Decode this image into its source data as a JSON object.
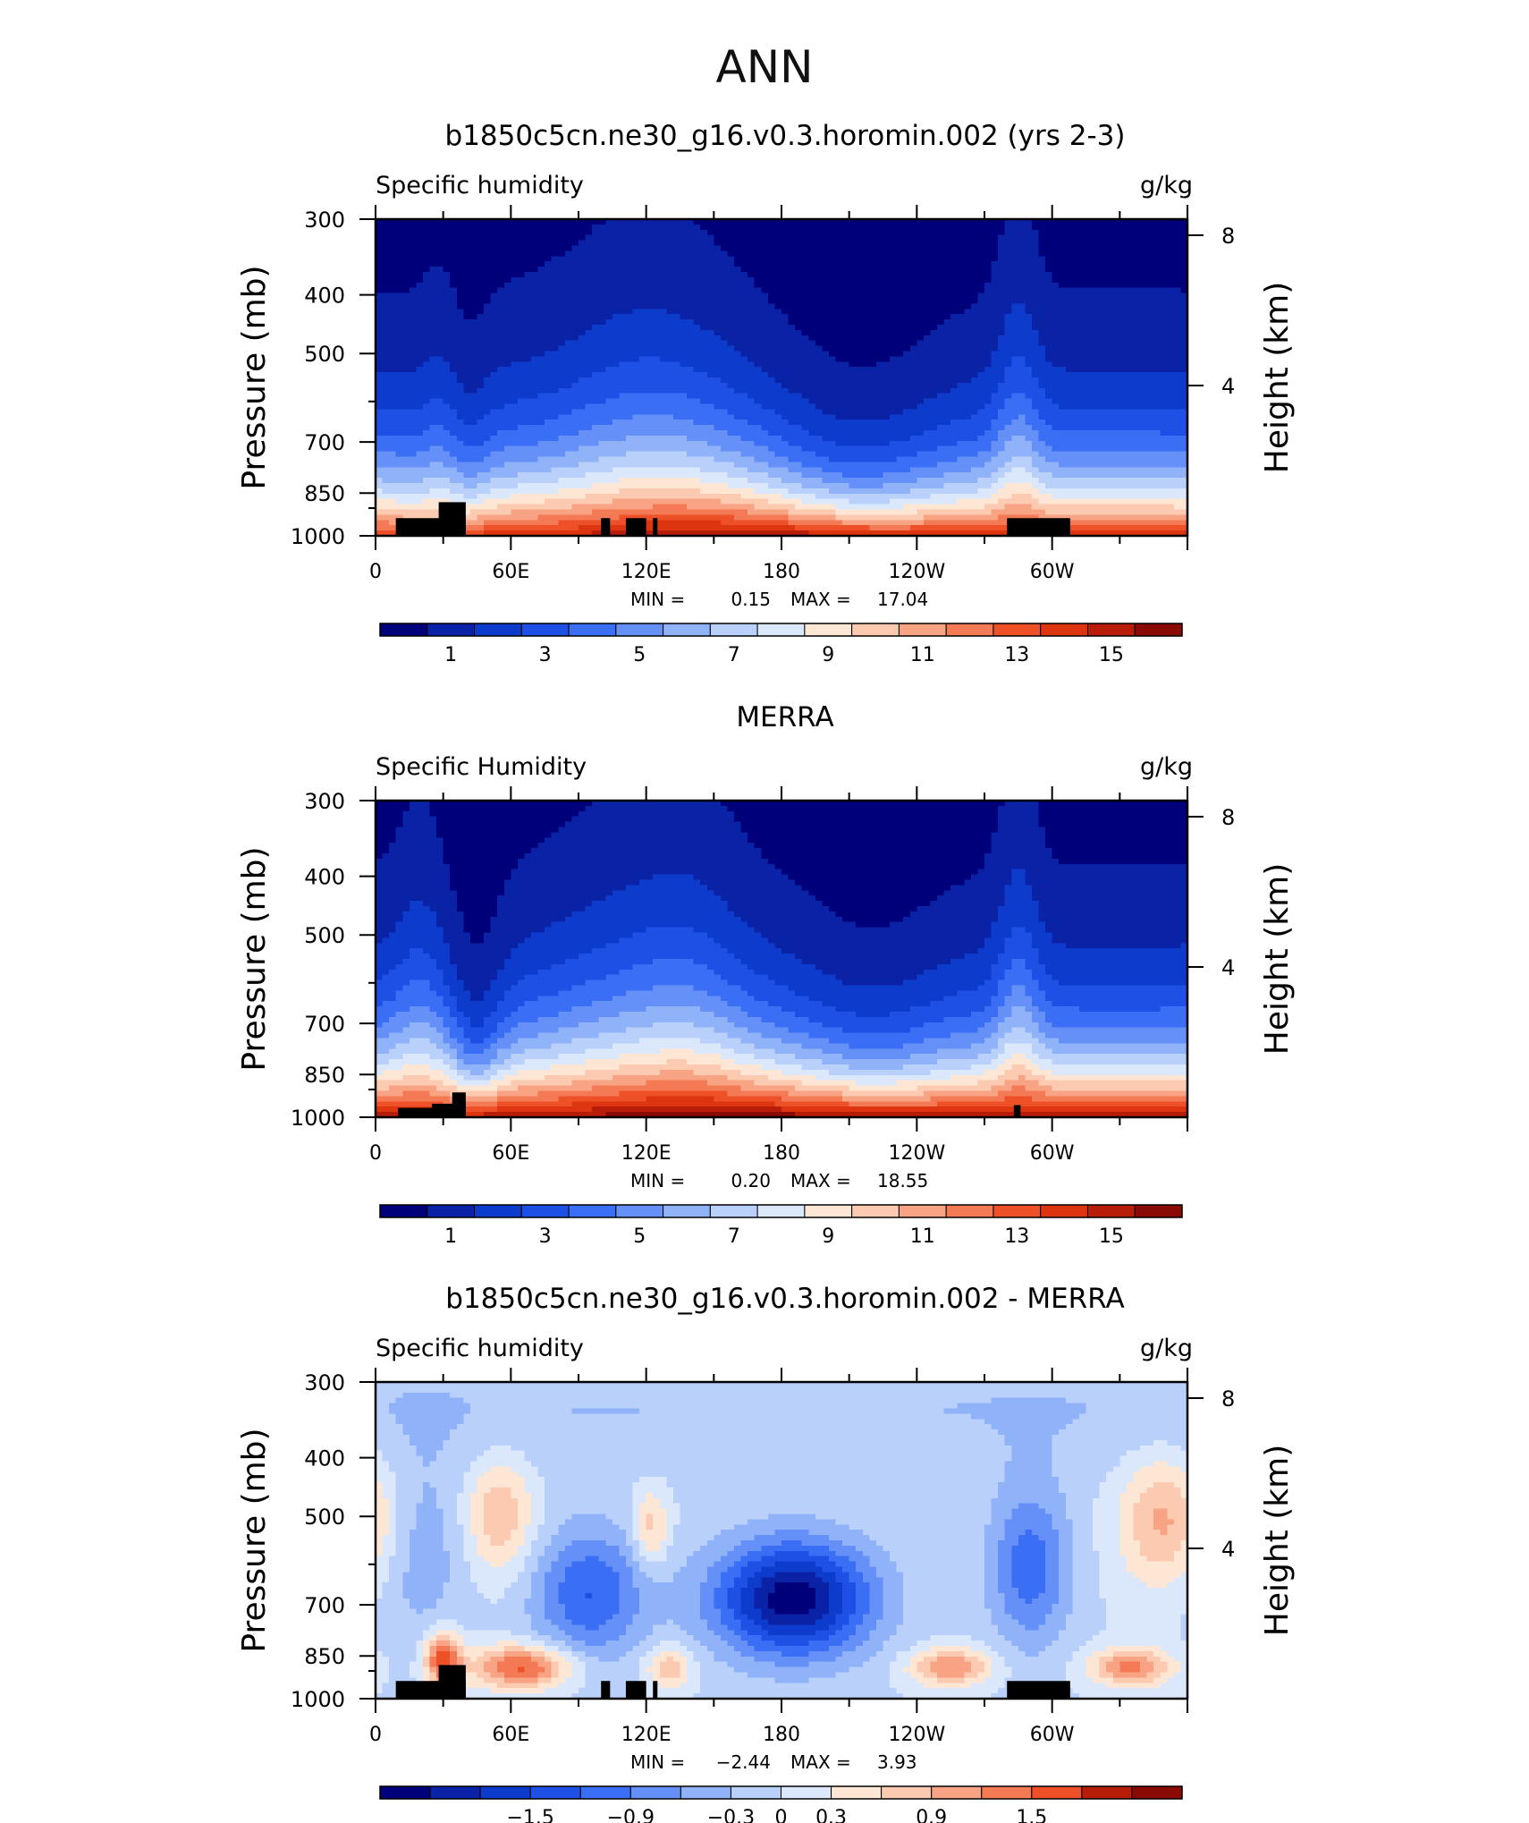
{
  "figure_title": "ANN",
  "colors": {
    "seq": [
      "#00007a",
      "#0a23a6",
      "#0d3ccc",
      "#1e50e6",
      "#3a6ef5",
      "#6490f7",
      "#8fb2f8",
      "#b8d0fa",
      "#dbe8fb",
      "#fde7d4",
      "#fbcab0",
      "#f8a384",
      "#f47a55",
      "#ee5128",
      "#dc3510",
      "#b81d0a",
      "#8a0a05"
    ],
    "div": [
      "#00007a",
      "#0a23a6",
      "#0d3ccc",
      "#1e50e6",
      "#3a6ef5",
      "#6490f7",
      "#8fb2f8",
      "#b8d0fa",
      "#dbe8fb",
      "#fde7d4",
      "#fbcab0",
      "#f8a384",
      "#f47a55",
      "#ee5128",
      "#b81d0a",
      "#8a0a05"
    ],
    "topography": "#000000"
  },
  "panels": [
    {
      "title": "b1850c5cn.ne30_g16.v0.3.horomin.002 (yrs 2-3)",
      "left_label": "Specific humidity",
      "right_label": "g/kg",
      "stats": {
        "min_label": "MIN =",
        "min": "0.15",
        "max_label": "MAX =",
        "max": "17.04"
      }
    },
    {
      "title": "MERRA",
      "left_label": "Specific Humidity",
      "right_label": "g/kg",
      "stats": {
        "min_label": "MIN =",
        "min": "0.20",
        "max_label": "MAX =",
        "max": "18.55"
      }
    },
    {
      "title": "b1850c5cn.ne30_g16.v0.3.horomin.002 - MERRA",
      "left_label": "Specific humidity",
      "right_label": "g/kg",
      "stats": {
        "min_label": "MIN =",
        "min": "−2.44",
        "max_label": "MAX =",
        "max": "3.93"
      }
    }
  ],
  "chart_data": [
    {
      "type": "heatmap",
      "title": "b1850c5cn.ne30_g16.v0.3.horomin.002 (yrs 2-3)",
      "variable": "Specific humidity",
      "units": "g/kg",
      "xlabel": "",
      "ylabel": "Pressure (mb)",
      "y2label": "Height (km)",
      "x_ticks": [
        "0",
        "60E",
        "120E",
        "180",
        "120W",
        "60W"
      ],
      "x_tick_values": [
        0,
        60,
        120,
        180,
        240,
        300
      ],
      "xlim": [
        0,
        360
      ],
      "y_ticks": [
        "300",
        "400",
        "500",
        "700",
        "850",
        "1000"
      ],
      "y_tick_values": [
        300,
        400,
        500,
        700,
        850,
        1000
      ],
      "ylim": [
        1000,
        300
      ],
      "y2_ticks": [
        "8",
        "4"
      ],
      "y2_tick_values": [
        8,
        4
      ],
      "colorbar": {
        "levels": [
          0.5,
          1.5,
          2.5,
          3.5,
          4.5,
          5.5,
          6.5,
          7.5,
          8.5,
          9.5,
          10.5,
          11.5,
          12.5,
          13.5,
          14.5,
          15.5
        ],
        "labels": [
          "1",
          "3",
          "5",
          "7",
          "9",
          "11",
          "13",
          "15"
        ],
        "label_values": [
          1,
          3,
          5,
          7,
          9,
          11,
          13,
          15
        ]
      },
      "min": 0.15,
      "max": 17.04
    },
    {
      "type": "heatmap",
      "title": "MERRA",
      "variable": "Specific Humidity",
      "units": "g/kg",
      "xlabel": "",
      "ylabel": "Pressure (mb)",
      "y2label": "Height (km)",
      "x_ticks": [
        "0",
        "60E",
        "120E",
        "180",
        "120W",
        "60W"
      ],
      "x_tick_values": [
        0,
        60,
        120,
        180,
        240,
        300
      ],
      "xlim": [
        0,
        360
      ],
      "y_ticks": [
        "300",
        "400",
        "500",
        "700",
        "850",
        "1000"
      ],
      "y_tick_values": [
        300,
        400,
        500,
        700,
        850,
        1000
      ],
      "ylim": [
        1000,
        300
      ],
      "y2_ticks": [
        "8",
        "4"
      ],
      "y2_tick_values": [
        8,
        4
      ],
      "colorbar": {
        "levels": [
          0.5,
          1.5,
          2.5,
          3.5,
          4.5,
          5.5,
          6.5,
          7.5,
          8.5,
          9.5,
          10.5,
          11.5,
          12.5,
          13.5,
          14.5,
          15.5
        ],
        "labels": [
          "1",
          "3",
          "5",
          "7",
          "9",
          "11",
          "13",
          "15"
        ],
        "label_values": [
          1,
          3,
          5,
          7,
          9,
          11,
          13,
          15
        ]
      },
      "min": 0.2,
      "max": 18.55
    },
    {
      "type": "heatmap",
      "title": "b1850c5cn.ne30_g16.v0.3.horomin.002 - MERRA",
      "variable": "Specific humidity",
      "units": "g/kg",
      "xlabel": "",
      "ylabel": "Pressure (mb)",
      "y2label": "Height (km)",
      "x_ticks": [
        "0",
        "60E",
        "120E",
        "180",
        "120W",
        "60W"
      ],
      "x_tick_values": [
        0,
        60,
        120,
        180,
        240,
        300
      ],
      "xlim": [
        0,
        360
      ],
      "y_ticks": [
        "300",
        "400",
        "500",
        "700",
        "850",
        "1000"
      ],
      "y_tick_values": [
        300,
        400,
        500,
        700,
        850,
        1000
      ],
      "ylim": [
        1000,
        300
      ],
      "y2_ticks": [
        "8",
        "4"
      ],
      "y2_tick_values": [
        8,
        4
      ],
      "colorbar": {
        "levels": [
          -2.1,
          -1.8,
          -1.5,
          -1.2,
          -0.9,
          -0.6,
          -0.3,
          0,
          0.3,
          0.6,
          0.9,
          1.2,
          1.5,
          1.8,
          2.1
        ],
        "labels": [
          "−1.5",
          "−0.9",
          "−0.3",
          "0",
          "0.3",
          "0.9",
          "1.5"
        ],
        "label_values": [
          -1.5,
          -0.9,
          -0.3,
          0,
          0.3,
          0.9,
          1.5
        ]
      },
      "min": -2.44,
      "max": 3.93
    }
  ]
}
